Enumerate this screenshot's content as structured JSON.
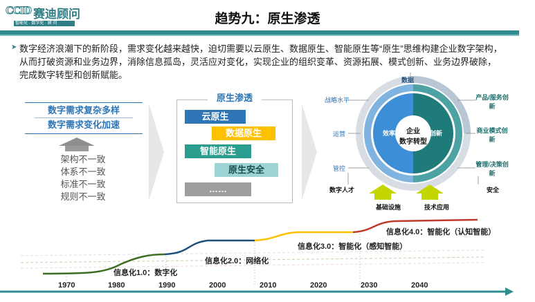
{
  "header": {
    "logo_mark": "CCID",
    "logo_text": "赛迪顾问",
    "logo_tagline": "智能化 · 数字化 · 顾 问",
    "title": "趋势九：原生渗透"
  },
  "intro": {
    "text": "数字经济浪潮下的新阶段，需求变化越来越快，迫切需要以云原生、数据原生、智能原生等“原生”思维构建企业数字架构，从而打破资源和业务边界，消除信息孤岛，灵活应对变化，实现企业的组织变革、资源拓展、模式创新、业务边界破除，完成数字转型和创新赋能。"
  },
  "left": {
    "needs": [
      "数字需求复杂多样",
      "数字需求变化加速"
    ],
    "inconsistencies": [
      "架构不一致",
      "体系不一致",
      "标准不一致",
      "规则不一致"
    ]
  },
  "middle": {
    "title": "原生渗透",
    "bars": [
      {
        "label": "云原生",
        "color": "#2e75b6"
      },
      {
        "label": "数据原生",
        "color": "#ffc000"
      },
      {
        "label": "智能原生",
        "color": "#2a9d8f"
      },
      {
        "label": "原生安全",
        "color": "#9dd3d3"
      },
      {
        "label": "……",
        "color": "#9e9e9e"
      }
    ]
  },
  "right": {
    "center": [
      "企业",
      "数字转型"
    ],
    "inner_left": "效率",
    "inner_right": "创新",
    "top": "数据",
    "left_labels": [
      "战略水平",
      "运营",
      "管控"
    ],
    "right_labels": [
      "产品/服务创新",
      "商业模式创新",
      "管理/决策创新"
    ],
    "bottom_left": "数字人才",
    "bottom_right": "安全",
    "foundation": [
      "基础设施",
      "技术应用"
    ],
    "colors": {
      "blue": "#2e75b6",
      "teal": "#1f7a7a",
      "light": "#dce6f0"
    }
  },
  "timeline": {
    "years": [
      "1970",
      "1980",
      "1990",
      "2000",
      "2010",
      "2020",
      "2030",
      "2040"
    ],
    "stages": [
      {
        "label": "信息化1.0：数字化",
        "color": "#3c6e1f"
      },
      {
        "label": "信息化2.0：网络化",
        "color": "#2e75b6"
      },
      {
        "label": "信息化3.0：智能化（感知智能）",
        "color": "#ffc000"
      },
      {
        "label": "信息化4.0：智能化（认知智能）",
        "color": "#c0392b"
      }
    ],
    "axis_color": "#2f8c91"
  }
}
